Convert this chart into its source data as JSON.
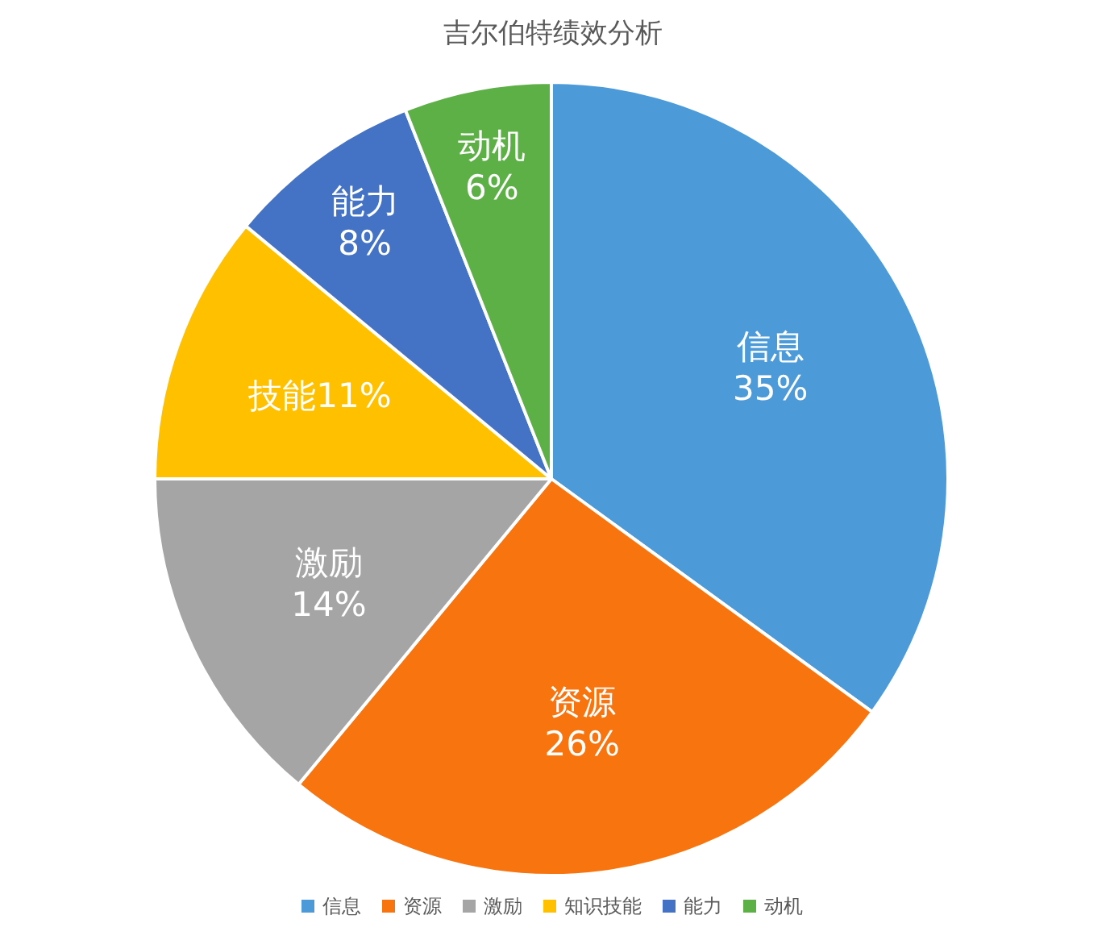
{
  "chart_data": {
    "type": "pie",
    "title": "吉尔伯特绩效分析",
    "categories": [
      "信息",
      "资源",
      "激励",
      "知识技能",
      "能力",
      "动机"
    ],
    "values": [
      35,
      26,
      14,
      11,
      8,
      6
    ],
    "colors": [
      "#4d9ad8",
      "#f8740e",
      "#a5a5a5",
      "#ffc000",
      "#4472c4",
      "#5cb046"
    ],
    "value_labels": [
      "信息 35%",
      "资源 26%",
      "激励 14%",
      "技能11%",
      "能力 8%",
      "动机 6%"
    ],
    "legend": "bottom"
  }
}
